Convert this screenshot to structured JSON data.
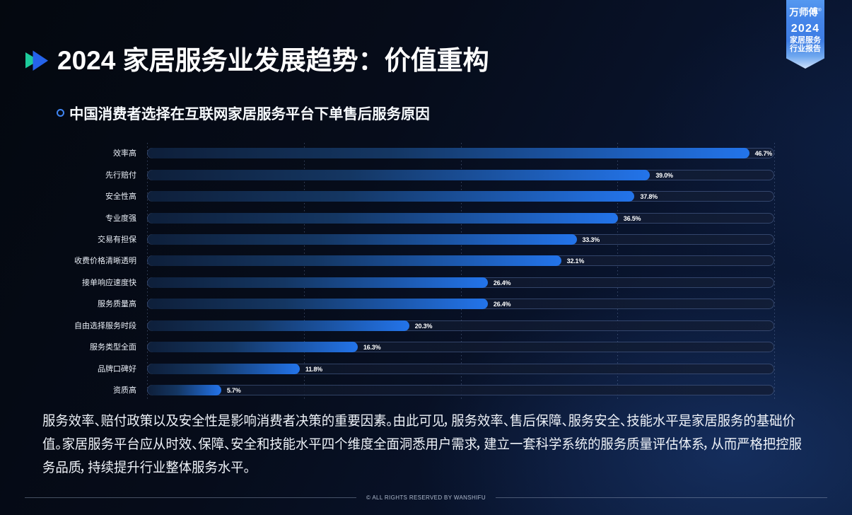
{
  "page": {
    "title": "2024 家居服务业发展趋势：价值重构"
  },
  "badge": {
    "brand": "万师傅",
    "reg_mark": "®",
    "year": "2024",
    "line1": "家居服务",
    "line2": "行业报告"
  },
  "chart_data": {
    "type": "bar",
    "orientation": "horizontal",
    "title": "中国消费者选择在互联网家居服务平台下单售后服务原因",
    "categories": [
      "效率高",
      "先行赔付",
      "安全性高",
      "专业度强",
      "交易有担保",
      "收费价格清晰透明",
      "接单响应速度快",
      "服务质量高",
      "自由选择服务时段",
      "服务类型全面",
      "品牌口碑好",
      "资质高"
    ],
    "values": [
      46.7,
      39.0,
      37.8,
      36.5,
      33.3,
      32.1,
      26.4,
      26.4,
      20.3,
      16.3,
      11.8,
      5.7
    ],
    "value_labels": [
      "46.7%",
      "39.0%",
      "37.8%",
      "36.5%",
      "33.3%",
      "32.1%",
      "26.4%",
      "26.4%",
      "20.3%",
      "16.3%",
      "11.8%",
      "5.7%"
    ],
    "xlim": [
      0,
      48.7
    ],
    "grid": "vertical-dashed, 5 lines at 0/25/50/75/100%",
    "legend": "none",
    "bar_gradient": [
      "#0e1f3a",
      "#143662",
      "#1b54a4",
      "#2374ea"
    ]
  },
  "paragraph": {
    "lines": [
      "服务效率、赔付政策以及安全性是影响消费者决策的重要因素。由此可见，服务效率、售后保障、服务安全、技能水平是家居服务的基础价",
      "值。家居服务平台应从时效、保障、安全和技能水平四个维度全面洞悉用户需求，建立一套科学系统的服务质量评估体系，从而严格把控服",
      "务品质，持续提升行业整体服务水平。"
    ]
  },
  "footer": {
    "copyright": "© ALL RIGHTS RESERVED BY WANSHIFU"
  },
  "icons": {
    "title_marker": "double-play-triangles-icon",
    "chart_bullet": "ring-icon"
  },
  "colors": {
    "accent_blue": "#2374ea",
    "accent_green": "#1dcb9b",
    "ribbon_blue": "#4787ea",
    "background_dark": "#060d1c"
  }
}
